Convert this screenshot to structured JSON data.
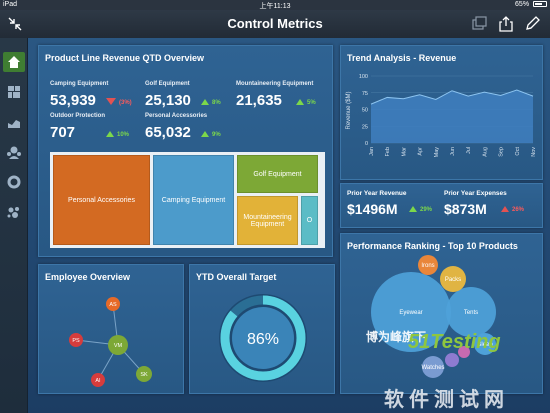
{
  "status_bar": {
    "carrier": "iPad",
    "time": "上午11:13",
    "battery": "65%",
    "battery_level": 0.65
  },
  "title_bar": {
    "title": "Control Metrics"
  },
  "sidebar": {
    "items": [
      {
        "icon": "home-icon",
        "active": true
      },
      {
        "icon": "dashboard-grid-icon",
        "active": false
      },
      {
        "icon": "line-chart-icon",
        "active": false
      },
      {
        "icon": "people-icon",
        "active": false
      },
      {
        "icon": "donut-chart-icon",
        "active": false
      },
      {
        "icon": "scatter-icon",
        "active": false
      }
    ]
  },
  "revenue_panel": {
    "title": "Product Line Revenue QTD Overview",
    "kpis": [
      {
        "label": "Camping Equipment",
        "value": "53,939",
        "delta": "(3%)",
        "direction": "down"
      },
      {
        "label": "Golf Equipment",
        "value": "25,130",
        "delta": "8%",
        "direction": "up"
      },
      {
        "label": "Mountaineering Equipment",
        "value": "21,635",
        "delta": "5%",
        "direction": "up"
      },
      {
        "label": "Outdoor Protection",
        "value": "707",
        "delta": "10%",
        "direction": "up"
      },
      {
        "label": "Personal Accessories",
        "value": "65,032",
        "delta": "9%",
        "direction": "up"
      }
    ],
    "treemap": [
      {
        "label": "Personal Accessories",
        "color": "#d36a22"
      },
      {
        "label": "Camping Equipment",
        "color": "#4c9bcb"
      },
      {
        "label": "Golf Equipment",
        "color": "#7da836"
      },
      {
        "label": "Mountaineering Equipment",
        "color": "#e2b238"
      },
      {
        "label": "O",
        "color": "#5bbcc6"
      }
    ]
  },
  "trend_panel": {
    "title": "Trend Analysis - Revenue",
    "ylabel": "Revenue ($M)",
    "chart_data": {
      "type": "area",
      "x": [
        "Jan",
        "Feb",
        "Mar",
        "Apr",
        "May",
        "Jun",
        "Jul",
        "Aug",
        "Sep",
        "Oct",
        "Nov"
      ],
      "values": [
        58,
        68,
        66,
        72,
        65,
        78,
        70,
        76,
        71,
        79,
        70
      ],
      "ylim": [
        0,
        100
      ],
      "yticks": [
        0,
        25,
        50,
        75,
        100
      ],
      "color": "#3f7fc0"
    }
  },
  "prior_panel": {
    "revenue_label": "Prior Year Revenue",
    "revenue_value": "$1496M",
    "revenue_delta": "29%",
    "expenses_label": "Prior Year Expenses",
    "expenses_value": "$873M",
    "expenses_delta": "26%"
  },
  "employee_panel": {
    "title": "Employee Overview",
    "center": "VM",
    "nodes": [
      {
        "label": "AS",
        "color": "#e66a28"
      },
      {
        "label": "PS",
        "color": "#d63c3c"
      },
      {
        "label": "AI",
        "color": "#d63c3c"
      },
      {
        "label": "SK",
        "color": "#7da836"
      }
    ]
  },
  "target_panel": {
    "title": "YTD Overall Target",
    "value": "86%",
    "fraction": 0.86
  },
  "ranking_panel": {
    "title": "Performance Ranking - Top 10 Products",
    "bubbles": [
      {
        "label": "Irons",
        "color": "#e9863a"
      },
      {
        "label": "Packs",
        "color": "#e0b443"
      },
      {
        "label": "Eyewear",
        "color": "#4ea2d9"
      },
      {
        "label": "Tents",
        "color": "#4ea2d9"
      },
      {
        "label": "Sleep",
        "color": "#4ea2d9"
      },
      {
        "label": "Watches",
        "color": "#7a9bd1"
      },
      {
        "label": "",
        "color": "#8e7bd0"
      },
      {
        "label": "",
        "color": "#c66ab0"
      }
    ]
  },
  "watermark": {
    "line1": "博为峰旗下",
    "line2": "51Testing",
    "line3": "软件测试网"
  }
}
